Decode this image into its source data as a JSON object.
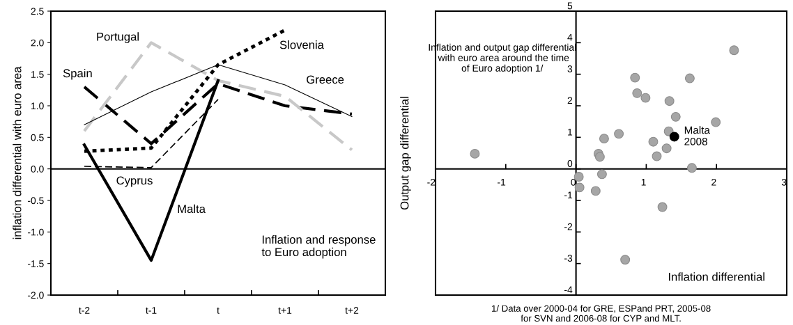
{
  "chart_data": [
    {
      "type": "line",
      "ylabel": "inflation differential with euro area",
      "categories": [
        "t-2",
        "t-1",
        "t",
        "t+1",
        "t+2"
      ],
      "ylim": [
        -2.0,
        2.5
      ],
      "yticks": [
        {
          "value": -2,
          "label": "-2.0"
        },
        {
          "value": -1.5,
          "label": "-1.5"
        },
        {
          "value": -1,
          "label": "-1.0"
        },
        {
          "value": -0.5,
          "label": "-0.5"
        },
        {
          "value": 0,
          "label": "0.0"
        },
        {
          "value": 0.5,
          "label": "0.5"
        },
        {
          "value": 1,
          "label": "1.0"
        },
        {
          "value": 1.5,
          "label": "1.5"
        },
        {
          "value": 2,
          "label": "2.0"
        },
        {
          "value": 2.5,
          "label": "2.5"
        }
      ],
      "grid": false,
      "legend": false,
      "marker": "none",
      "series": [
        {
          "name": "Spain",
          "color": "#000000",
          "line_style": "dashed",
          "values": [
            1.3,
            0.4,
            1.35,
            1.0,
            0.87
          ]
        },
        {
          "name": "Portugal",
          "color": "#c8c8c8",
          "line_style": "dashed",
          "values": [
            0.6,
            2.0,
            1.4,
            1.15,
            0.3
          ]
        },
        {
          "name": "Slovenia",
          "color": "#000000",
          "line_style": "dotted",
          "values": [
            0.28,
            0.33,
            1.65,
            2.2,
            null
          ]
        },
        {
          "name": "Greece",
          "color": "#000000",
          "line_style": "solid",
          "values": [
            0.7,
            1.22,
            1.65,
            1.33,
            0.83
          ]
        },
        {
          "name": "Cyprus",
          "color": "#000000",
          "line_style": "dashed",
          "values": [
            0.04,
            0.02,
            1.1,
            null,
            null
          ]
        },
        {
          "name": "Malta",
          "color": "#000000",
          "line_style": "solid",
          "values": [
            0.38,
            -1.45,
            1.4,
            null,
            null
          ]
        }
      ],
      "ref_lines": [
        {
          "axis": "y",
          "value": 0,
          "color": "#000000",
          "line_style": "solid"
        }
      ],
      "annotations": [
        "Inflation and response\nto Euro adoption"
      ]
    },
    {
      "type": "scatter",
      "title": "Inflation and output gap differential\n with euro area around the time\nof Euro adoption 1/",
      "xlabel": "Inflation differential",
      "ylabel": "Output gap differential",
      "xlim": [
        -2,
        3
      ],
      "ylim": [
        -4,
        5
      ],
      "xticks": [
        -2,
        -1,
        0,
        1,
        2,
        3
      ],
      "yticks": [
        -4,
        -3,
        -2,
        -1,
        0,
        1,
        2,
        3,
        4,
        5
      ],
      "grid": false,
      "legend": false,
      "marker": "circle",
      "series": [
        {
          "color": "#a6a6a6",
          "x": [
            -1.44,
            0.84,
            0.87,
            0.99,
            1.33,
            1.62,
            2.25,
            1.42,
            1.99,
            1.32,
            0.61,
            0.4,
            1.1,
            1.29,
            0.32,
            0.34,
            1.15,
            1.65,
            0.04,
            0.05,
            0.37,
            0.28,
            1.23,
            0.7
          ],
          "values": [
            0.48,
            2.89,
            2.4,
            2.25,
            2.15,
            2.87,
            3.76,
            1.65,
            1.48,
            1.19,
            1.11,
            0.96,
            0.86,
            0.65,
            0.48,
            0.38,
            0.4,
            0.03,
            -0.25,
            -0.59,
            -0.17,
            -0.7,
            -1.21,
            -2.88
          ]
        },
        {
          "color": "#000000",
          "x": [
            1.4
          ],
          "values": [
            1.02
          ]
        }
      ],
      "annotations": [
        {
          "text": "Malta\n2008",
          "x": 1.4,
          "y": 1.02
        },
        "1/ Data over 2000-04 for GRE, ESPand PRT, 2005-08\nfor SVN and 2006-08 for CYP and MLT."
      ]
    }
  ]
}
